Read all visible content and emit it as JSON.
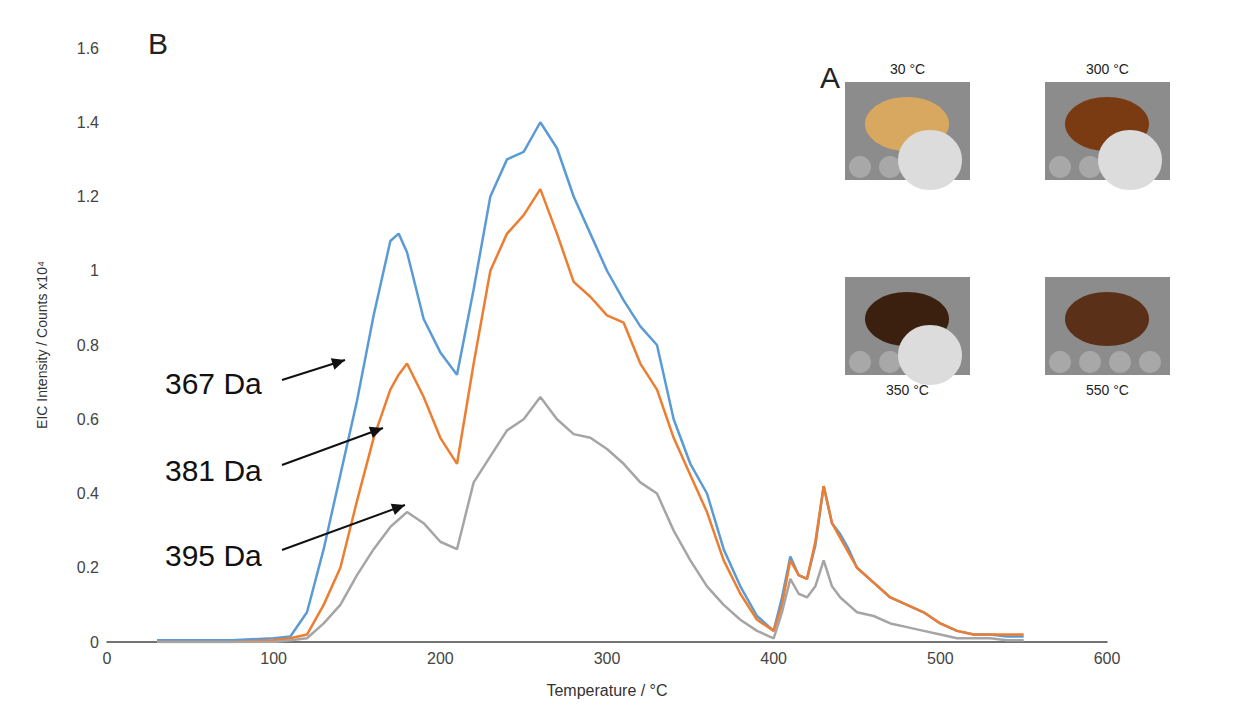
{
  "chart_data": {
    "type": "line",
    "panel_label": "B",
    "x_label": "Temperature / °C",
    "y_label": "EIC Intensity / Counts x10⁴",
    "x": [
      30,
      50,
      75,
      100,
      110,
      120,
      130,
      140,
      150,
      160,
      170,
      175,
      180,
      190,
      200,
      210,
      220,
      230,
      240,
      250,
      260,
      270,
      280,
      290,
      300,
      310,
      320,
      330,
      340,
      350,
      360,
      370,
      380,
      390,
      400,
      405,
      410,
      415,
      420,
      425,
      430,
      435,
      440,
      445,
      450,
      460,
      470,
      480,
      490,
      500,
      510,
      520,
      530,
      540,
      550
    ],
    "series": [
      {
        "name": "367 Da",
        "color": "#5b9bd5",
        "values": [
          0.005,
          0.005,
          0.005,
          0.01,
          0.015,
          0.08,
          0.25,
          0.45,
          0.65,
          0.88,
          1.08,
          1.1,
          1.05,
          0.87,
          0.78,
          0.72,
          0.95,
          1.2,
          1.3,
          1.32,
          1.4,
          1.33,
          1.2,
          1.1,
          1.0,
          0.92,
          0.85,
          0.8,
          0.6,
          0.48,
          0.4,
          0.25,
          0.15,
          0.07,
          0.03,
          0.12,
          0.23,
          0.18,
          0.17,
          0.26,
          0.42,
          0.32,
          0.29,
          0.25,
          0.2,
          0.16,
          0.12,
          0.1,
          0.08,
          0.05,
          0.03,
          0.02,
          0.02,
          0.015,
          0.015
        ]
      },
      {
        "name": "381 Da",
        "color": "#ed7d31",
        "values": [
          0,
          0,
          0,
          0.005,
          0.01,
          0.02,
          0.1,
          0.2,
          0.38,
          0.55,
          0.68,
          0.72,
          0.75,
          0.66,
          0.55,
          0.48,
          0.75,
          1.0,
          1.1,
          1.15,
          1.22,
          1.1,
          0.97,
          0.93,
          0.88,
          0.86,
          0.75,
          0.68,
          0.55,
          0.45,
          0.35,
          0.22,
          0.13,
          0.06,
          0.03,
          0.1,
          0.22,
          0.18,
          0.17,
          0.27,
          0.42,
          0.32,
          0.28,
          0.24,
          0.2,
          0.16,
          0.12,
          0.1,
          0.08,
          0.05,
          0.03,
          0.02,
          0.02,
          0.02,
          0.02
        ]
      },
      {
        "name": "395 Da",
        "color": "#a5a5a5",
        "values": [
          0,
          0,
          0,
          0,
          0.005,
          0.01,
          0.05,
          0.1,
          0.18,
          0.25,
          0.31,
          0.33,
          0.35,
          0.32,
          0.27,
          0.25,
          0.43,
          0.5,
          0.57,
          0.6,
          0.66,
          0.6,
          0.56,
          0.55,
          0.52,
          0.48,
          0.43,
          0.4,
          0.3,
          0.22,
          0.15,
          0.1,
          0.06,
          0.03,
          0.01,
          0.08,
          0.17,
          0.13,
          0.12,
          0.15,
          0.22,
          0.15,
          0.12,
          0.1,
          0.08,
          0.07,
          0.05,
          0.04,
          0.03,
          0.02,
          0.01,
          0.01,
          0.01,
          0.005,
          0.005
        ]
      }
    ],
    "xlim": [
      0,
      600
    ],
    "xticks": [
      0,
      100,
      200,
      300,
      400,
      500,
      600
    ],
    "ylim": [
      0,
      1.6
    ],
    "yticks": [
      0,
      0.2,
      0.4,
      0.6,
      0.8,
      1,
      1.2,
      1.4,
      1.6
    ],
    "grid": false
  },
  "inset": {
    "panel_label": "A",
    "images": [
      {
        "label": "30 °C"
      },
      {
        "label": "300 °C"
      },
      {
        "label": "350 °C"
      },
      {
        "label": "550 °C"
      }
    ]
  }
}
